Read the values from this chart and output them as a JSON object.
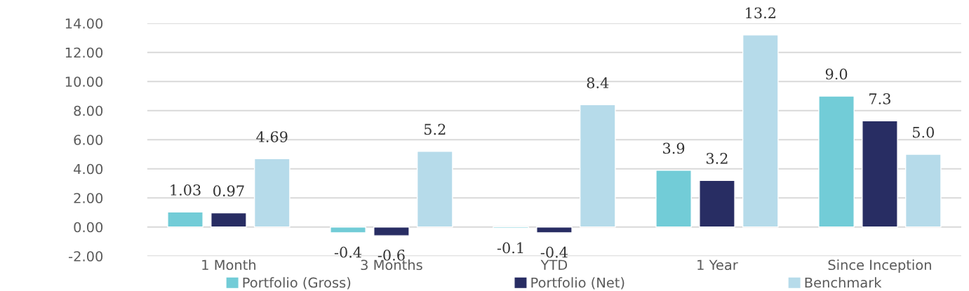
{
  "chart_data": {
    "type": "bar",
    "categories": [
      "1 Month",
      "3 Months",
      "YTD",
      "1 Year",
      "Since Inception"
    ],
    "series": [
      {
        "name": "Portfolio (Gross)",
        "color": "#72ccd7",
        "values": [
          1.03,
          -0.4,
          -0.1,
          3.9,
          9.0
        ],
        "value_labels": [
          "1.03",
          "-0.4",
          "-0.1",
          "3.9",
          "9.0"
        ]
      },
      {
        "name": "Portfolio (Net)",
        "color": "#282d63",
        "values": [
          0.97,
          -0.6,
          -0.4,
          3.2,
          7.3
        ],
        "value_labels": [
          "0.97",
          "-0.6",
          "-0.4",
          "3.2",
          "7.3"
        ]
      },
      {
        "name": "Benchmark",
        "color": "#b6dbea",
        "values": [
          4.69,
          5.2,
          8.4,
          13.2,
          5.0
        ],
        "value_labels": [
          "4.69",
          "5.2",
          "8.4",
          "13.2",
          "5.0"
        ]
      }
    ],
    "ylim": [
      -2,
      14
    ],
    "yticks": [
      {
        "value": -2,
        "label": "-2.00"
      },
      {
        "value": 0,
        "label": "0.00"
      },
      {
        "value": 2,
        "label": "2.00"
      },
      {
        "value": 4,
        "label": "4.00"
      },
      {
        "value": 6,
        "label": "6.00"
      },
      {
        "value": 8,
        "label": "8.00"
      },
      {
        "value": 10,
        "label": "10.00"
      },
      {
        "value": 12,
        "label": "12.00"
      },
      {
        "value": 14,
        "label": "14.00"
      }
    ],
    "grid": "y",
    "legend": "bottom"
  }
}
